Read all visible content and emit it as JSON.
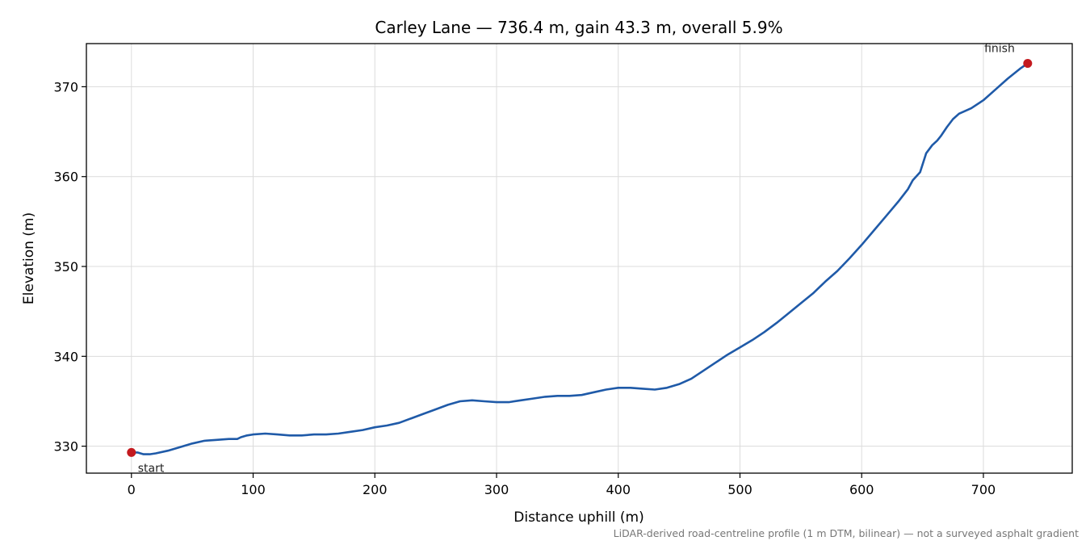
{
  "chart_data": {
    "type": "line",
    "title": "Carley Lane — 736.4 m, gain 43.3 m, overall 5.9%",
    "xlabel": "Distance uphill (m)",
    "ylabel": "Elevation (m)",
    "xlim": [
      -37,
      773
    ],
    "ylim": [
      327,
      374.8
    ],
    "xticks": [
      0,
      100,
      200,
      300,
      400,
      500,
      600,
      700
    ],
    "yticks": [
      330,
      340,
      350,
      360,
      370
    ],
    "grid": true,
    "footnote": "LiDAR-derived road-centreline profile (1 m DTM, bilinear) — not a surveyed asphalt gradient",
    "series": [
      {
        "color": "#1f5aa8",
        "x": [
          0,
          5,
          10,
          15,
          20,
          30,
          40,
          50,
          60,
          70,
          80,
          87,
          90,
          95,
          100,
          110,
          120,
          130,
          140,
          150,
          160,
          170,
          180,
          190,
          200,
          210,
          220,
          230,
          240,
          250,
          260,
          270,
          280,
          290,
          300,
          310,
          320,
          330,
          340,
          350,
          360,
          370,
          380,
          390,
          400,
          410,
          420,
          430,
          440,
          450,
          460,
          470,
          480,
          490,
          500,
          510,
          520,
          530,
          540,
          550,
          560,
          570,
          580,
          590,
          600,
          610,
          620,
          630,
          638,
          642,
          648,
          653,
          658,
          662,
          665,
          670,
          675,
          680,
          690,
          700,
          710,
          720,
          730,
          736.4
        ],
        "y": [
          329.3,
          329.3,
          329.1,
          329.1,
          329.2,
          329.5,
          329.9,
          330.3,
          330.6,
          330.7,
          330.8,
          330.8,
          331.0,
          331.2,
          331.3,
          331.4,
          331.3,
          331.2,
          331.2,
          331.3,
          331.3,
          331.4,
          331.6,
          331.8,
          332.1,
          332.3,
          332.6,
          333.1,
          333.6,
          334.1,
          334.6,
          335.0,
          335.1,
          335.0,
          334.9,
          334.9,
          335.1,
          335.3,
          335.5,
          335.6,
          335.6,
          335.7,
          336.0,
          336.3,
          336.5,
          336.5,
          336.4,
          336.3,
          336.5,
          336.9,
          337.5,
          338.4,
          339.3,
          340.2,
          341.0,
          341.8,
          342.7,
          343.7,
          344.8,
          345.9,
          347.0,
          348.3,
          349.5,
          350.9,
          352.4,
          354.0,
          355.6,
          357.2,
          358.6,
          359.6,
          360.5,
          362.6,
          363.5,
          364.0,
          364.5,
          365.5,
          366.4,
          367.0,
          367.6,
          368.5,
          369.7,
          370.9,
          372.0,
          372.6
        ]
      }
    ],
    "markers": [
      {
        "x": 0,
        "y": 329.3,
        "label": "start",
        "color": "#c41a1f"
      },
      {
        "x": 736.4,
        "y": 372.6,
        "label": "finish",
        "color": "#c41a1f"
      }
    ]
  }
}
